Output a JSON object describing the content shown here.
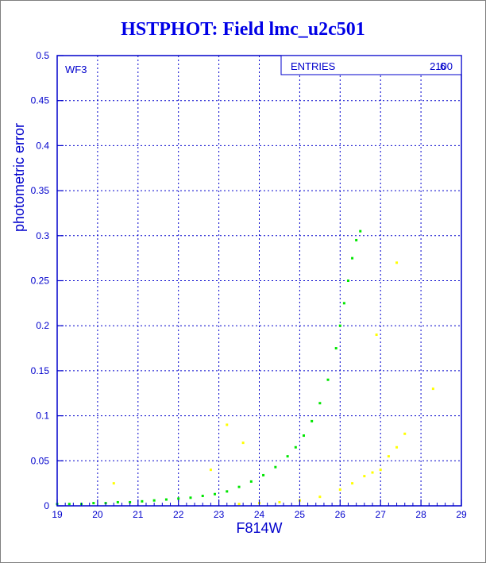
{
  "page_title": "HSTPHOT: Field lmc_u2c501",
  "chart_data": {
    "type": "scatter",
    "title": "HSTPHOT: Field lmc_u2c501",
    "xlabel": "F814W",
    "ylabel": "photometric error",
    "xlim": [
      19,
      29
    ],
    "ylim": [
      0,
      0.5
    ],
    "xticks": [
      19,
      20,
      21,
      22,
      23,
      24,
      25,
      26,
      27,
      28,
      29
    ],
    "yticks": [
      0,
      0.05,
      0.1,
      0.15,
      0.2,
      0.25,
      0.3,
      0.35,
      0.4,
      0.45,
      0.5
    ],
    "grid": true,
    "chip_label": "WF3",
    "stats_box": {
      "label": "ENTRIES",
      "value": "2100",
      "overlap_value": "6"
    },
    "colors": {
      "axes": "#0000cc",
      "green": "#00e600",
      "yellow": "#ffff00",
      "title": "#0000e6"
    },
    "series": [
      {
        "color": "green",
        "points": [
          [
            19.0,
            0.002
          ],
          [
            19.3,
            0.002
          ],
          [
            19.6,
            0.002
          ],
          [
            19.9,
            0.003
          ],
          [
            20.2,
            0.003
          ],
          [
            20.5,
            0.004
          ],
          [
            20.8,
            0.004
          ],
          [
            21.1,
            0.005
          ],
          [
            21.4,
            0.006
          ],
          [
            21.7,
            0.007
          ],
          [
            22.0,
            0.008
          ],
          [
            22.3,
            0.009
          ],
          [
            22.6,
            0.011
          ],
          [
            22.9,
            0.013
          ],
          [
            23.2,
            0.016
          ],
          [
            23.5,
            0.021
          ],
          [
            23.8,
            0.027
          ],
          [
            24.1,
            0.034
          ],
          [
            24.4,
            0.043
          ],
          [
            24.7,
            0.055
          ],
          [
            24.9,
            0.065
          ],
          [
            25.1,
            0.078
          ],
          [
            25.3,
            0.094
          ],
          [
            25.5,
            0.114
          ],
          [
            25.7,
            0.14
          ],
          [
            25.9,
            0.175
          ],
          [
            26.0,
            0.2
          ],
          [
            26.1,
            0.225
          ],
          [
            26.2,
            0.25
          ],
          [
            26.3,
            0.275
          ],
          [
            26.4,
            0.295
          ],
          [
            26.5,
            0.305
          ]
        ]
      },
      {
        "color": "yellow",
        "points": [
          [
            23.5,
            0.002
          ],
          [
            24.0,
            0.003
          ],
          [
            24.5,
            0.004
          ],
          [
            25.0,
            0.006
          ],
          [
            25.5,
            0.01
          ],
          [
            26.0,
            0.018
          ],
          [
            26.3,
            0.025
          ],
          [
            26.6,
            0.033
          ],
          [
            26.8,
            0.037
          ],
          [
            27.0,
            0.04
          ],
          [
            27.2,
            0.055
          ],
          [
            27.4,
            0.065
          ],
          [
            27.6,
            0.08
          ],
          [
            27.4,
            0.27
          ],
          [
            28.3,
            0.13
          ],
          [
            20.4,
            0.025
          ],
          [
            23.2,
            0.09
          ],
          [
            23.6,
            0.07
          ],
          [
            22.8,
            0.04
          ],
          [
            26.9,
            0.19
          ]
        ]
      }
    ]
  }
}
